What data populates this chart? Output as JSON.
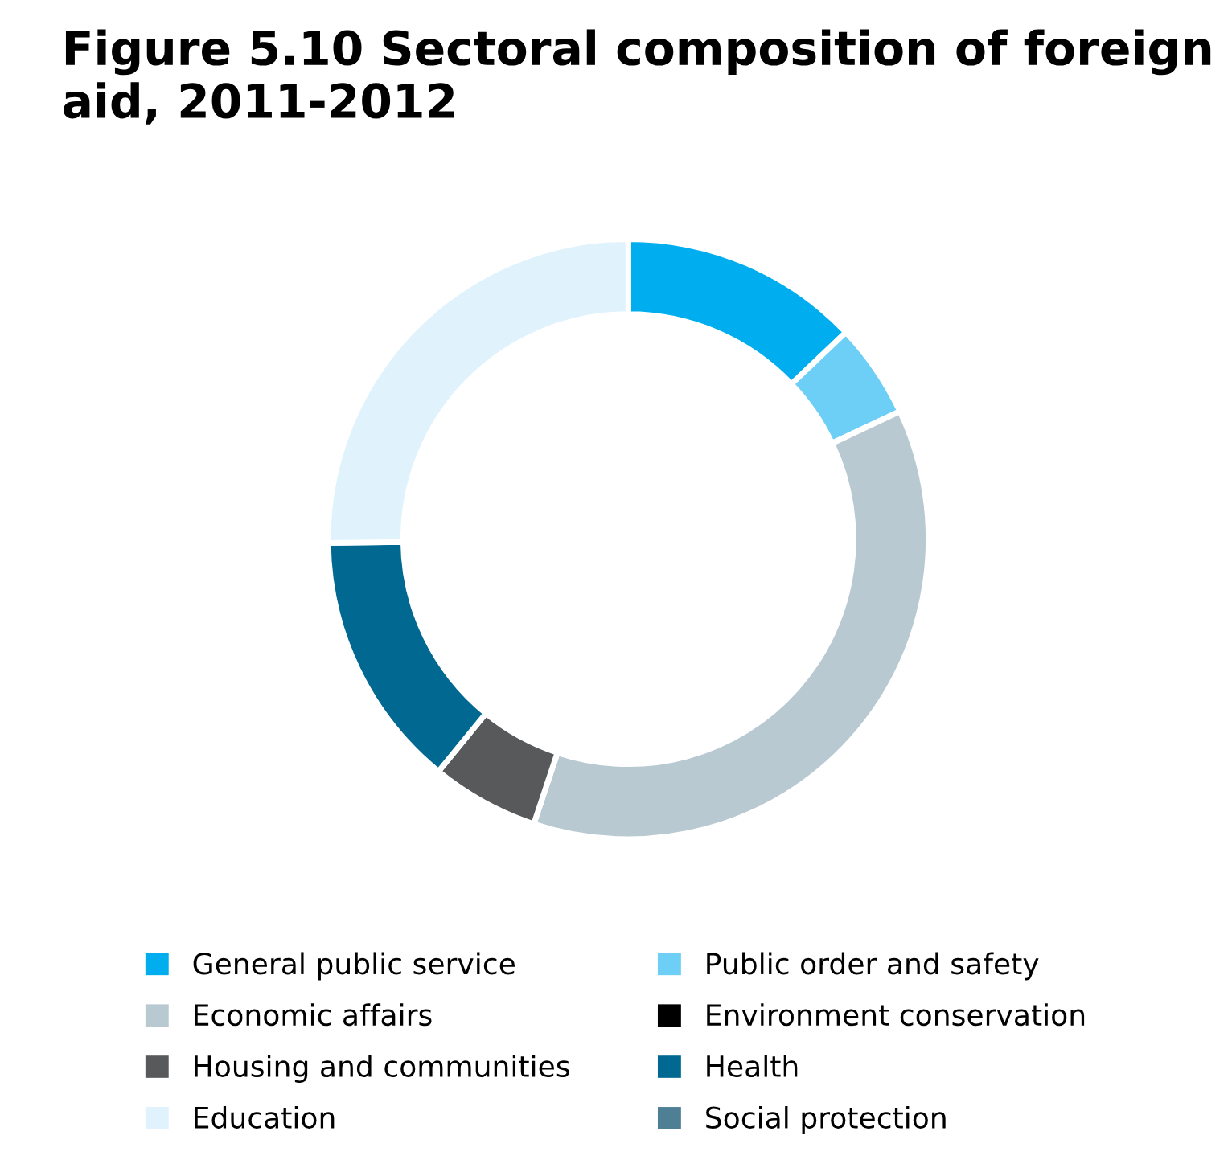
{
  "chart_data": {
    "type": "donut",
    "title": "Figure 5.10 Sectoral composition of foreign aid, 2011-2012",
    "categories": [
      "General public service",
      "Public order and safety",
      "Economic affairs",
      "Environment conservation",
      "Housing and communities",
      "Health",
      "Education",
      "Social protection"
    ],
    "values": [
      12.9,
      5.1,
      37.1,
      0,
      5.8,
      13.9,
      25.2,
      0
    ],
    "colors": [
      "#00aeef",
      "#6dcff6",
      "#b8c9d1",
      "#000000",
      "#58595b",
      "#006891",
      "#e0f2fc",
      "#4f7f95"
    ],
    "legend": "bottom"
  }
}
